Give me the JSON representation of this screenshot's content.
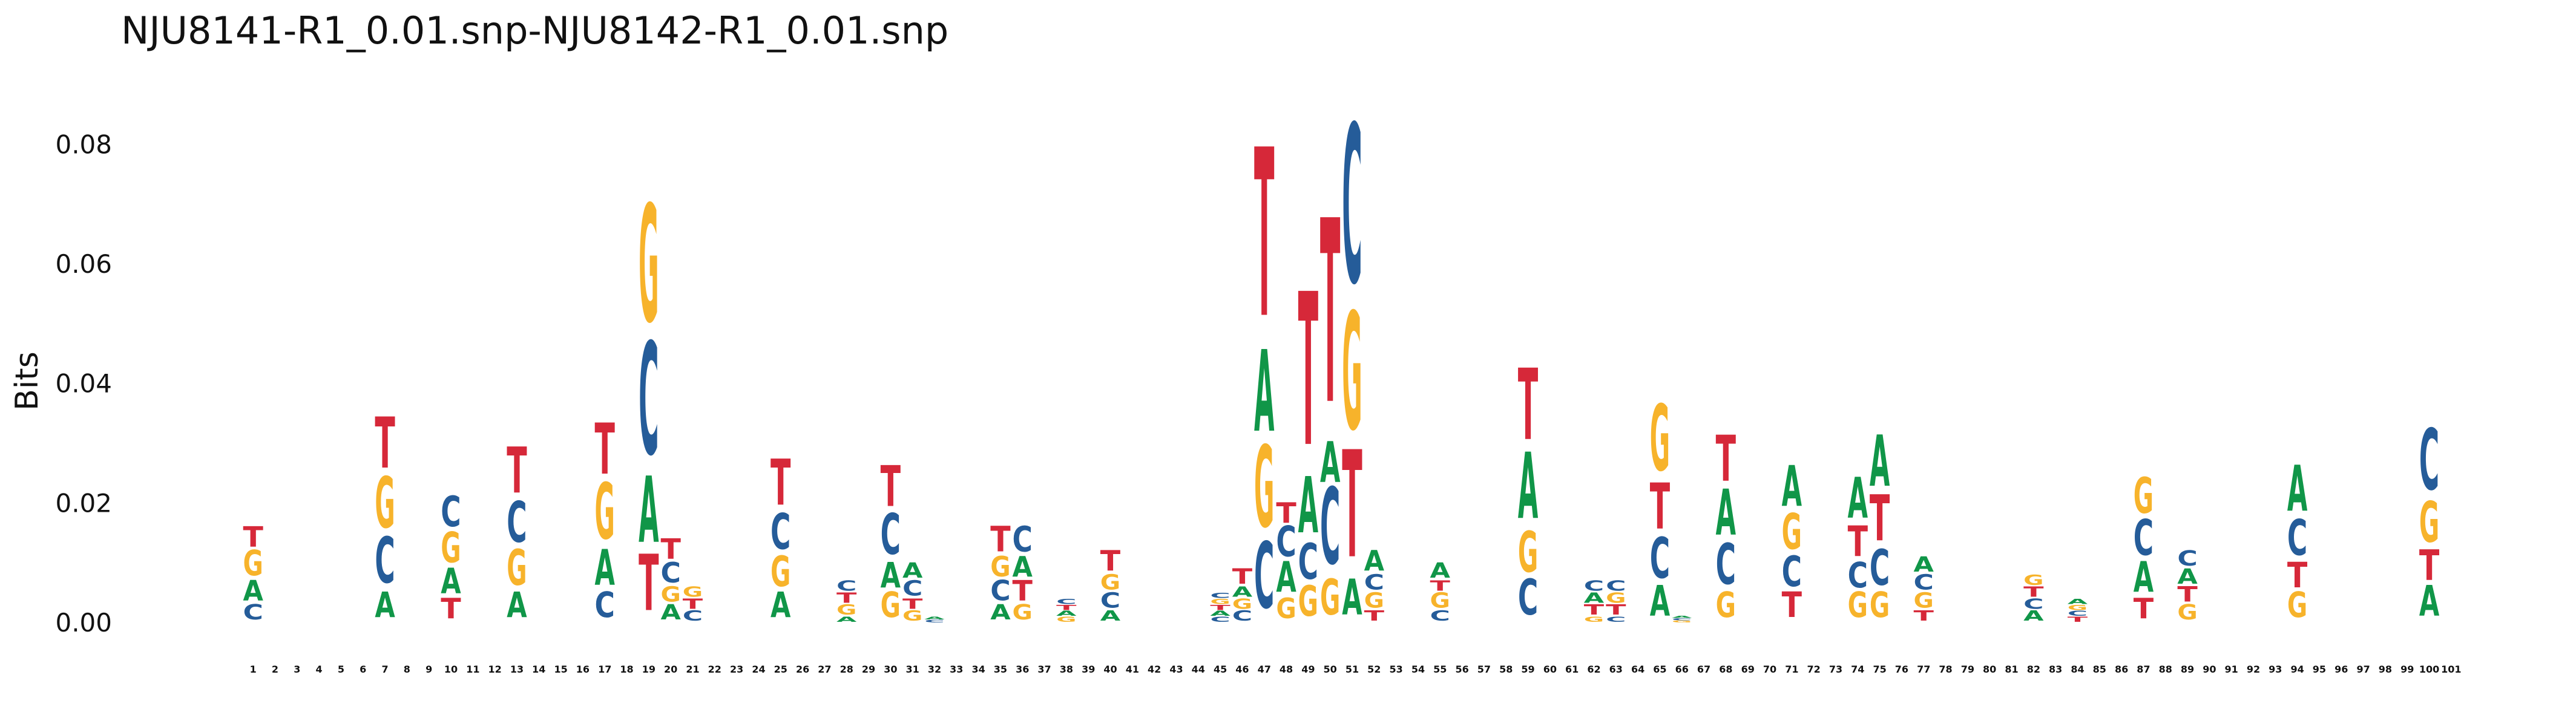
{
  "chart_data": {
    "type": "sequence-logo",
    "title": "NJU8141-R1_0.01.snp-NJU8142-R1_0.01.snp",
    "xlabel": "",
    "ylabel": "Bits",
    "ylim": [
      0,
      0.085
    ],
    "yticks": [
      "0.00",
      "0.02",
      "0.04",
      "0.06",
      "0.08"
    ],
    "x_min": 1,
    "x_max": 101,
    "grid": false,
    "colors": {
      "A": "#109648",
      "C": "#255c99",
      "G": "#f7b32b",
      "T": "#d62839"
    },
    "positions": [
      {
        "pos": 1,
        "stack": [
          [
            "C",
            0.003
          ],
          [
            "A",
            0.004
          ],
          [
            "G",
            0.005
          ],
          [
            "T",
            0.004
          ]
        ]
      },
      {
        "pos": 7,
        "stack": [
          [
            "A",
            0.005
          ],
          [
            "C",
            0.009
          ],
          [
            "G",
            0.01
          ],
          [
            "T",
            0.01
          ]
        ]
      },
      {
        "pos": 10,
        "stack": [
          [
            "T",
            0.004
          ],
          [
            "A",
            0.005
          ],
          [
            "G",
            0.006
          ],
          [
            "C",
            0.006
          ]
        ]
      },
      {
        "pos": 13,
        "stack": [
          [
            "A",
            0.005
          ],
          [
            "G",
            0.007
          ],
          [
            "C",
            0.008
          ],
          [
            "T",
            0.009
          ]
        ]
      },
      {
        "pos": 17,
        "stack": [
          [
            "C",
            0.005
          ],
          [
            "A",
            0.007
          ],
          [
            "G",
            0.011
          ],
          [
            "T",
            0.01
          ]
        ]
      },
      {
        "pos": 19,
        "stack": [
          [
            "T",
            0.011
          ],
          [
            "A",
            0.013
          ],
          [
            "C",
            0.022
          ],
          [
            "G",
            0.023
          ]
        ]
      },
      {
        "pos": 20,
        "stack": [
          [
            "A",
            0.003
          ],
          [
            "G",
            0.003
          ],
          [
            "C",
            0.004
          ],
          [
            "T",
            0.004
          ]
        ]
      },
      {
        "pos": 21,
        "stack": [
          [
            "C",
            0.002
          ],
          [
            "T",
            0.002
          ],
          [
            "G",
            0.002
          ]
        ]
      },
      {
        "pos": 25,
        "stack": [
          [
            "A",
            0.005
          ],
          [
            "G",
            0.006
          ],
          [
            "C",
            0.007
          ],
          [
            "T",
            0.009
          ]
        ]
      },
      {
        "pos": 28,
        "stack": [
          [
            "A",
            0.001
          ],
          [
            "G",
            0.002
          ],
          [
            "T",
            0.002
          ],
          [
            "C",
            0.002
          ]
        ]
      },
      {
        "pos": 30,
        "stack": [
          [
            "G",
            0.005
          ],
          [
            "A",
            0.005
          ],
          [
            "C",
            0.008
          ],
          [
            "T",
            0.008
          ]
        ]
      },
      {
        "pos": 31,
        "stack": [
          [
            "G",
            0.002
          ],
          [
            "T",
            0.002
          ],
          [
            "C",
            0.003
          ],
          [
            "A",
            0.003
          ]
        ]
      },
      {
        "pos": 32,
        "stack": [
          [
            "C",
            0.0005
          ],
          [
            "A",
            0.0005
          ]
        ]
      },
      {
        "pos": 35,
        "stack": [
          [
            "A",
            0.003
          ],
          [
            "C",
            0.004
          ],
          [
            "G",
            0.004
          ],
          [
            "T",
            0.005
          ]
        ]
      },
      {
        "pos": 36,
        "stack": [
          [
            "G",
            0.003
          ],
          [
            "T",
            0.004
          ],
          [
            "A",
            0.004
          ],
          [
            "C",
            0.005
          ]
        ]
      },
      {
        "pos": 38,
        "stack": [
          [
            "G",
            0.001
          ],
          [
            "A",
            0.001
          ],
          [
            "T",
            0.001
          ],
          [
            "C",
            0.001
          ]
        ]
      },
      {
        "pos": 40,
        "stack": [
          [
            "A",
            0.002
          ],
          [
            "C",
            0.003
          ],
          [
            "G",
            0.003
          ],
          [
            "T",
            0.004
          ]
        ]
      },
      {
        "pos": 45,
        "stack": [
          [
            "C",
            0.001
          ],
          [
            "A",
            0.001
          ],
          [
            "T",
            0.001
          ],
          [
            "G",
            0.001
          ],
          [
            "C",
            0.001
          ]
        ]
      },
      {
        "pos": 46,
        "stack": [
          [
            "C",
            0.002
          ],
          [
            "G",
            0.002
          ],
          [
            "A",
            0.002
          ],
          [
            "T",
            0.003
          ]
        ]
      },
      {
        "pos": 47,
        "stack": [
          [
            "C",
            0.013
          ],
          [
            "G",
            0.016
          ],
          [
            "A",
            0.016
          ],
          [
            "T",
            0.033
          ]
        ]
      },
      {
        "pos": 48,
        "stack": [
          [
            "G",
            0.004
          ],
          [
            "A",
            0.006
          ],
          [
            "C",
            0.006
          ],
          [
            "T",
            0.004
          ]
        ]
      },
      {
        "pos": 49,
        "stack": [
          [
            "G",
            0.006
          ],
          [
            "C",
            0.007
          ],
          [
            "A",
            0.011
          ],
          [
            "T",
            0.03
          ]
        ]
      },
      {
        "pos": 50,
        "stack": [
          [
            "G",
            0.007
          ],
          [
            "C",
            0.015
          ],
          [
            "A",
            0.008
          ],
          [
            "T",
            0.036
          ]
        ]
      },
      {
        "pos": 51,
        "stack": [
          [
            "A",
            0.007
          ],
          [
            "T",
            0.021
          ],
          [
            "G",
            0.023
          ],
          [
            "C",
            0.031
          ]
        ]
      },
      {
        "pos": 52,
        "stack": [
          [
            "T",
            0.002
          ],
          [
            "G",
            0.003
          ],
          [
            "C",
            0.003
          ],
          [
            "A",
            0.004
          ]
        ]
      },
      {
        "pos": 55,
        "stack": [
          [
            "C",
            0.002
          ],
          [
            "G",
            0.003
          ],
          [
            "T",
            0.002
          ],
          [
            "A",
            0.003
          ]
        ]
      },
      {
        "pos": 59,
        "stack": [
          [
            "C",
            0.007
          ],
          [
            "G",
            0.008
          ],
          [
            "A",
            0.013
          ],
          [
            "T",
            0.014
          ]
        ]
      },
      {
        "pos": 62,
        "stack": [
          [
            "G",
            0.001
          ],
          [
            "T",
            0.002
          ],
          [
            "A",
            0.002
          ],
          [
            "C",
            0.002
          ]
        ]
      },
      {
        "pos": 63,
        "stack": [
          [
            "C",
            0.001
          ],
          [
            "T",
            0.002
          ],
          [
            "G",
            0.002
          ],
          [
            "C",
            0.002
          ]
        ]
      },
      {
        "pos": 65,
        "stack": [
          [
            "A",
            0.006
          ],
          [
            "C",
            0.008
          ],
          [
            "T",
            0.009
          ],
          [
            "G",
            0.013
          ]
        ]
      },
      {
        "pos": 66,
        "stack": [
          [
            "G",
            0.0004
          ],
          [
            "C",
            0.0004
          ],
          [
            "A",
            0.0004
          ]
        ]
      },
      {
        "pos": 68,
        "stack": [
          [
            "G",
            0.005
          ],
          [
            "C",
            0.008
          ],
          [
            "A",
            0.009
          ],
          [
            "T",
            0.009
          ]
        ]
      },
      {
        "pos": 71,
        "stack": [
          [
            "T",
            0.005
          ],
          [
            "C",
            0.006
          ],
          [
            "G",
            0.007
          ],
          [
            "A",
            0.008
          ]
        ]
      },
      {
        "pos": 74,
        "stack": [
          [
            "G",
            0.005
          ],
          [
            "C",
            0.005
          ],
          [
            "T",
            0.006
          ],
          [
            "A",
            0.008
          ]
        ]
      },
      {
        "pos": 75,
        "stack": [
          [
            "G",
            0.005
          ],
          [
            "C",
            0.007
          ],
          [
            "T",
            0.009
          ],
          [
            "A",
            0.01
          ]
        ]
      },
      {
        "pos": 77,
        "stack": [
          [
            "T",
            0.002
          ],
          [
            "G",
            0.003
          ],
          [
            "C",
            0.003
          ],
          [
            "A",
            0.003
          ]
        ]
      },
      {
        "pos": 82,
        "stack": [
          [
            "A",
            0.002
          ],
          [
            "C",
            0.002
          ],
          [
            "T",
            0.002
          ],
          [
            "G",
            0.002
          ]
        ]
      },
      {
        "pos": 84,
        "stack": [
          [
            "T",
            0.001
          ],
          [
            "C",
            0.001
          ],
          [
            "G",
            0.001
          ],
          [
            "A",
            0.001
          ]
        ]
      },
      {
        "pos": 87,
        "stack": [
          [
            "T",
            0.004
          ],
          [
            "A",
            0.006
          ],
          [
            "C",
            0.007
          ],
          [
            "G",
            0.007
          ]
        ]
      },
      {
        "pos": 89,
        "stack": [
          [
            "G",
            0.003
          ],
          [
            "T",
            0.003
          ],
          [
            "A",
            0.003
          ],
          [
            "C",
            0.003
          ]
        ]
      },
      {
        "pos": 94,
        "stack": [
          [
            "G",
            0.005
          ],
          [
            "T",
            0.005
          ],
          [
            "C",
            0.007
          ],
          [
            "A",
            0.009
          ]
        ]
      },
      {
        "pos": 100,
        "stack": [
          [
            "A",
            0.006
          ],
          [
            "T",
            0.006
          ],
          [
            "G",
            0.008
          ],
          [
            "C",
            0.012
          ]
        ]
      }
    ]
  }
}
